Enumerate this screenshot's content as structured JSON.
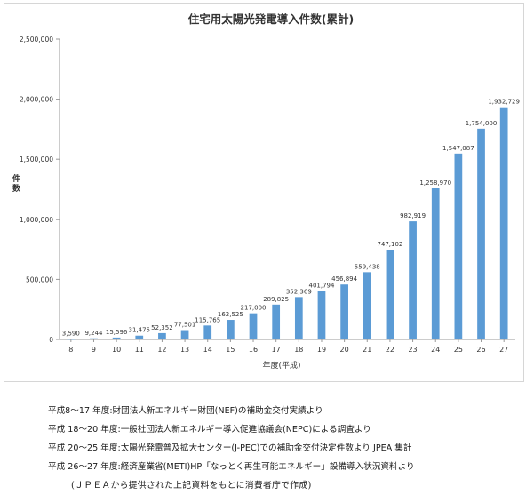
{
  "chart_data": {
    "type": "bar",
    "title": "住宅用太陽光発電導入件数(累計)",
    "ylabel": "件数",
    "xlabel": "年度(平成)",
    "ylim": [
      0,
      2500000
    ],
    "yticks": [
      0,
      500000,
      1000000,
      1500000,
      2000000,
      2500000
    ],
    "ytick_labels": [
      "0",
      "500,000",
      "1,000,000",
      "1,500,000",
      "2,000,000",
      "2,500,000"
    ],
    "categories": [
      "8",
      "9",
      "10",
      "11",
      "12",
      "13",
      "14",
      "15",
      "16",
      "17",
      "18",
      "19",
      "20",
      "21",
      "22",
      "23",
      "24",
      "25",
      "26",
      "27"
    ],
    "values": [
      3590,
      9244,
      15596,
      31475,
      52352,
      77501,
      115765,
      162525,
      217000,
      289825,
      352369,
      401794,
      456894,
      559438,
      747102,
      982919,
      1258970,
      1547087,
      1754000,
      1932729
    ],
    "value_labels": [
      "3,590",
      "9,244",
      "15,596",
      "31,475",
      "52,352",
      "77,501",
      "115,765",
      "162,525",
      "217,000",
      "289,825",
      "352,369",
      "401,794",
      "456,894",
      "559,438",
      "747,102",
      "982,919",
      "1,258,970",
      "1,547,087",
      "1,754,000",
      "1,932,729"
    ],
    "bar_color": "#5b9bd5",
    "grid": false,
    "legend": "none"
  },
  "notes": [
    "平成8～17 年度:財団法人新エネルギー財団(NEF)の補助金交付実績より",
    "平成 18～20 年度:一般社団法人新エネルギー導入促進協議会(NEPC)による調査より",
    "平成 20～25 年度:太陽光発電普及拡大センター(J-PEC)での補助金交付決定件数より JPEA 集計",
    "平成 26～27 年度:経済産業省(METI)HP「なっとく再生可能エネルギー」設備導入状況資料より"
  ],
  "note_sub": "(ＪＰＥＡから提供された上記資料をもとに消費者庁で作成)"
}
